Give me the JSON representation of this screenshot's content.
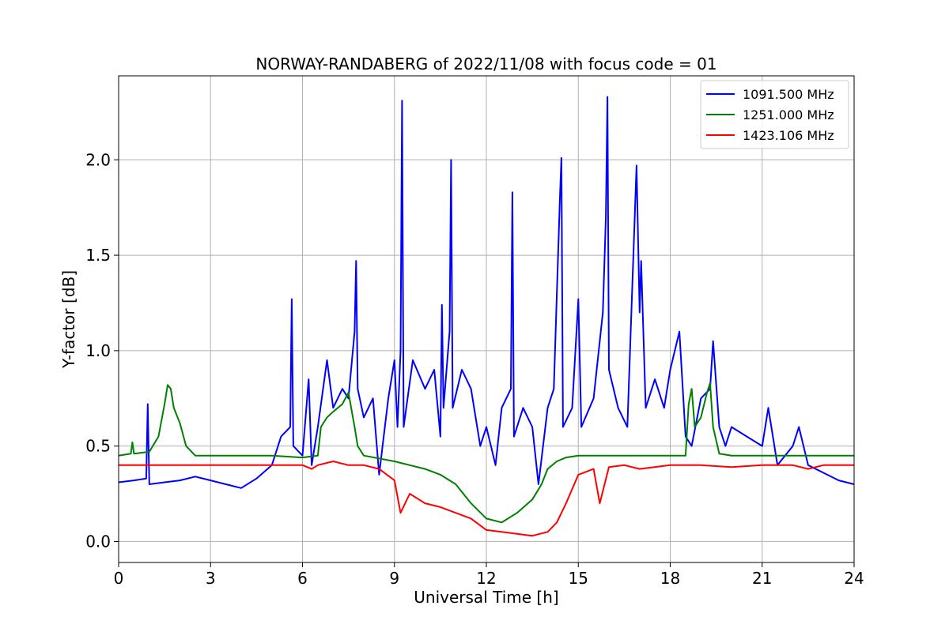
{
  "chart_data": {
    "type": "line",
    "title": "NORWAY-RANDABERG of 2022/11/08 with focus code = 01",
    "xlabel": "Universal Time [h]",
    "ylabel": "Y-factor [dB]",
    "xlim": [
      0,
      24
    ],
    "ylim": [
      -0.11,
      2.44
    ],
    "x_ticks": [
      0,
      3,
      6,
      9,
      12,
      15,
      18,
      21,
      24
    ],
    "x_tick_labels": [
      "0",
      "3",
      "6",
      "9",
      "12",
      "15",
      "18",
      "21",
      "24"
    ],
    "y_ticks": [
      0.0,
      0.5,
      1.0,
      1.5,
      2.0
    ],
    "y_tick_labels": [
      "0.0",
      "0.5",
      "1.0",
      "1.5",
      "2.0"
    ],
    "grid": true,
    "legend_position": "top-right",
    "series": [
      {
        "name": "1091.500 MHz",
        "color": "#0000ff",
        "points": [
          [
            0.0,
            0.31
          ],
          [
            0.5,
            0.32
          ],
          [
            0.9,
            0.33
          ],
          [
            0.95,
            0.72
          ],
          [
            1.0,
            0.3
          ],
          [
            1.5,
            0.31
          ],
          [
            2.0,
            0.32
          ],
          [
            2.5,
            0.34
          ],
          [
            3.0,
            0.32
          ],
          [
            3.5,
            0.3
          ],
          [
            4.0,
            0.28
          ],
          [
            4.5,
            0.33
          ],
          [
            5.0,
            0.4
          ],
          [
            5.3,
            0.55
          ],
          [
            5.6,
            0.6
          ],
          [
            5.65,
            1.27
          ],
          [
            5.7,
            0.5
          ],
          [
            6.0,
            0.45
          ],
          [
            6.2,
            0.85
          ],
          [
            6.3,
            0.4
          ],
          [
            6.5,
            0.6
          ],
          [
            6.8,
            0.95
          ],
          [
            7.0,
            0.7
          ],
          [
            7.3,
            0.8
          ],
          [
            7.5,
            0.75
          ],
          [
            7.7,
            1.1
          ],
          [
            7.75,
            1.47
          ],
          [
            7.8,
            0.8
          ],
          [
            8.0,
            0.65
          ],
          [
            8.3,
            0.75
          ],
          [
            8.5,
            0.35
          ],
          [
            8.8,
            0.75
          ],
          [
            9.0,
            0.95
          ],
          [
            9.1,
            0.6
          ],
          [
            9.2,
            1.0
          ],
          [
            9.25,
            2.31
          ],
          [
            9.3,
            0.6
          ],
          [
            9.6,
            0.95
          ],
          [
            10.0,
            0.8
          ],
          [
            10.3,
            0.9
          ],
          [
            10.5,
            0.55
          ],
          [
            10.55,
            1.24
          ],
          [
            10.6,
            0.7
          ],
          [
            10.8,
            1.1
          ],
          [
            10.85,
            2.0
          ],
          [
            10.9,
            0.7
          ],
          [
            11.2,
            0.9
          ],
          [
            11.5,
            0.8
          ],
          [
            11.8,
            0.5
          ],
          [
            12.0,
            0.6
          ],
          [
            12.3,
            0.4
          ],
          [
            12.5,
            0.7
          ],
          [
            12.8,
            0.8
          ],
          [
            12.85,
            1.83
          ],
          [
            12.9,
            0.55
          ],
          [
            13.2,
            0.7
          ],
          [
            13.5,
            0.6
          ],
          [
            13.7,
            0.3
          ],
          [
            14.0,
            0.7
          ],
          [
            14.2,
            0.8
          ],
          [
            14.4,
            1.8
          ],
          [
            14.45,
            2.01
          ],
          [
            14.5,
            0.6
          ],
          [
            14.8,
            0.7
          ],
          [
            15.0,
            1.27
          ],
          [
            15.1,
            0.6
          ],
          [
            15.5,
            0.75
          ],
          [
            15.8,
            1.2
          ],
          [
            15.9,
            1.7
          ],
          [
            15.95,
            2.33
          ],
          [
            16.0,
            0.9
          ],
          [
            16.3,
            0.7
          ],
          [
            16.6,
            0.6
          ],
          [
            16.9,
            1.97
          ],
          [
            17.0,
            1.2
          ],
          [
            17.05,
            1.47
          ],
          [
            17.2,
            0.7
          ],
          [
            17.5,
            0.85
          ],
          [
            17.8,
            0.7
          ],
          [
            18.0,
            0.9
          ],
          [
            18.3,
            1.1
          ],
          [
            18.5,
            0.55
          ],
          [
            18.7,
            0.5
          ],
          [
            19.0,
            0.75
          ],
          [
            19.3,
            0.8
          ],
          [
            19.4,
            1.05
          ],
          [
            19.6,
            0.6
          ],
          [
            19.8,
            0.5
          ],
          [
            20.0,
            0.6
          ],
          [
            20.5,
            0.55
          ],
          [
            21.0,
            0.5
          ],
          [
            21.2,
            0.7
          ],
          [
            21.5,
            0.4
          ],
          [
            22.0,
            0.5
          ],
          [
            22.2,
            0.6
          ],
          [
            22.5,
            0.4
          ],
          [
            23.0,
            0.36
          ],
          [
            23.5,
            0.32
          ],
          [
            24.0,
            0.3
          ]
        ]
      },
      {
        "name": "1251.000 MHz",
        "color": "#008000",
        "points": [
          [
            0.0,
            0.45
          ],
          [
            0.4,
            0.46
          ],
          [
            0.45,
            0.52
          ],
          [
            0.5,
            0.46
          ],
          [
            1.0,
            0.47
          ],
          [
            1.3,
            0.55
          ],
          [
            1.5,
            0.72
          ],
          [
            1.6,
            0.82
          ],
          [
            1.7,
            0.8
          ],
          [
            1.8,
            0.7
          ],
          [
            2.0,
            0.62
          ],
          [
            2.2,
            0.5
          ],
          [
            2.5,
            0.45
          ],
          [
            3.0,
            0.45
          ],
          [
            4.0,
            0.45
          ],
          [
            5.0,
            0.45
          ],
          [
            6.0,
            0.44
          ],
          [
            6.5,
            0.45
          ],
          [
            6.6,
            0.6
          ],
          [
            6.8,
            0.65
          ],
          [
            7.0,
            0.68
          ],
          [
            7.3,
            0.72
          ],
          [
            7.5,
            0.78
          ],
          [
            7.7,
            0.6
          ],
          [
            7.8,
            0.5
          ],
          [
            8.0,
            0.45
          ],
          [
            9.0,
            0.42
          ],
          [
            9.5,
            0.4
          ],
          [
            10.0,
            0.38
          ],
          [
            10.5,
            0.35
          ],
          [
            11.0,
            0.3
          ],
          [
            11.5,
            0.2
          ],
          [
            12.0,
            0.12
          ],
          [
            12.5,
            0.1
          ],
          [
            13.0,
            0.15
          ],
          [
            13.5,
            0.22
          ],
          [
            13.8,
            0.3
          ],
          [
            14.0,
            0.38
          ],
          [
            14.3,
            0.42
          ],
          [
            14.6,
            0.44
          ],
          [
            15.0,
            0.45
          ],
          [
            16.0,
            0.45
          ],
          [
            17.0,
            0.45
          ],
          [
            18.0,
            0.45
          ],
          [
            18.5,
            0.45
          ],
          [
            18.6,
            0.72
          ],
          [
            18.7,
            0.8
          ],
          [
            18.8,
            0.6
          ],
          [
            19.0,
            0.65
          ],
          [
            19.2,
            0.78
          ],
          [
            19.3,
            0.83
          ],
          [
            19.4,
            0.6
          ],
          [
            19.6,
            0.46
          ],
          [
            20.0,
            0.45
          ],
          [
            21.0,
            0.45
          ],
          [
            22.0,
            0.45
          ],
          [
            23.0,
            0.45
          ],
          [
            24.0,
            0.45
          ]
        ]
      },
      {
        "name": "1423.106 MHz",
        "color": "#ff0000",
        "points": [
          [
            0.0,
            0.4
          ],
          [
            1.0,
            0.4
          ],
          [
            2.0,
            0.4
          ],
          [
            3.0,
            0.4
          ],
          [
            4.0,
            0.4
          ],
          [
            5.0,
            0.4
          ],
          [
            6.0,
            0.4
          ],
          [
            6.3,
            0.38
          ],
          [
            6.5,
            0.4
          ],
          [
            7.0,
            0.42
          ],
          [
            7.5,
            0.4
          ],
          [
            8.0,
            0.4
          ],
          [
            8.5,
            0.38
          ],
          [
            9.0,
            0.32
          ],
          [
            9.2,
            0.15
          ],
          [
            9.5,
            0.25
          ],
          [
            10.0,
            0.2
          ],
          [
            10.5,
            0.18
          ],
          [
            11.0,
            0.15
          ],
          [
            11.5,
            0.12
          ],
          [
            12.0,
            0.06
          ],
          [
            12.5,
            0.05
          ],
          [
            13.0,
            0.04
          ],
          [
            13.5,
            0.03
          ],
          [
            14.0,
            0.05
          ],
          [
            14.3,
            0.1
          ],
          [
            14.6,
            0.2
          ],
          [
            15.0,
            0.35
          ],
          [
            15.5,
            0.38
          ],
          [
            15.7,
            0.2
          ],
          [
            16.0,
            0.39
          ],
          [
            16.5,
            0.4
          ],
          [
            17.0,
            0.38
          ],
          [
            18.0,
            0.4
          ],
          [
            19.0,
            0.4
          ],
          [
            20.0,
            0.39
          ],
          [
            21.0,
            0.4
          ],
          [
            22.0,
            0.4
          ],
          [
            22.5,
            0.38
          ],
          [
            23.0,
            0.4
          ],
          [
            24.0,
            0.4
          ]
        ]
      }
    ]
  }
}
